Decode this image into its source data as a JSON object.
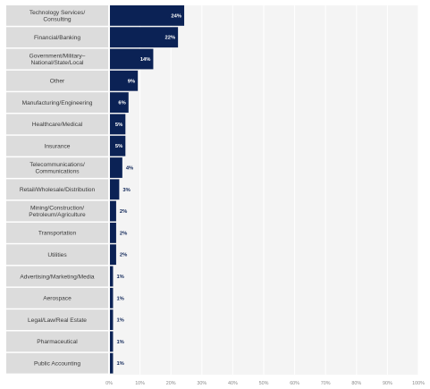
{
  "chart_data": {
    "type": "bar",
    "orientation": "horizontal",
    "categories": [
      [
        "Technology Services/",
        "Consulting"
      ],
      [
        "Financial/Banking"
      ],
      [
        "Government/Military–",
        "National/State/Local"
      ],
      [
        "Other"
      ],
      [
        "Manufacturing/Engineering"
      ],
      [
        "Healthcare/Medical"
      ],
      [
        "Insurance"
      ],
      [
        "Telecommunications/",
        "Communications"
      ],
      [
        "Retail/Wholesale/Distribution"
      ],
      [
        "Mining/Construction/",
        "Petroleum/Agriculture"
      ],
      [
        "Transportation"
      ],
      [
        "Utilities"
      ],
      [
        "Advertising/Marketing/Media"
      ],
      [
        "Aerospace"
      ],
      [
        "Legal/Law/Real Estate"
      ],
      [
        "Pharmaceutical"
      ],
      [
        "Public Accounting"
      ]
    ],
    "values": [
      24,
      22,
      14,
      9,
      6,
      5,
      5,
      4,
      3,
      2,
      2,
      2,
      1,
      1,
      1,
      1,
      1
    ],
    "value_labels": [
      "24%",
      "22%",
      "14%",
      "9%",
      "6%",
      "5%",
      "5%",
      "4%",
      "3%",
      "2%",
      "2%",
      "2%",
      "1%",
      "1%",
      "1%",
      "1%",
      "1%"
    ],
    "xlim": [
      0,
      100
    ],
    "xticks": [
      "0%",
      "10%",
      "20%",
      "30%",
      "40%",
      "50%",
      "60%",
      "70%",
      "80%",
      "90%",
      "100%"
    ],
    "grid": true,
    "colors": {
      "bar": "#0b2255",
      "label_bg": "#dcdcdc",
      "plot_bg": "#f4f4f4",
      "grid": "#ffffff",
      "value_inside": "#ffffff",
      "value_outside": "#0b2255"
    }
  }
}
